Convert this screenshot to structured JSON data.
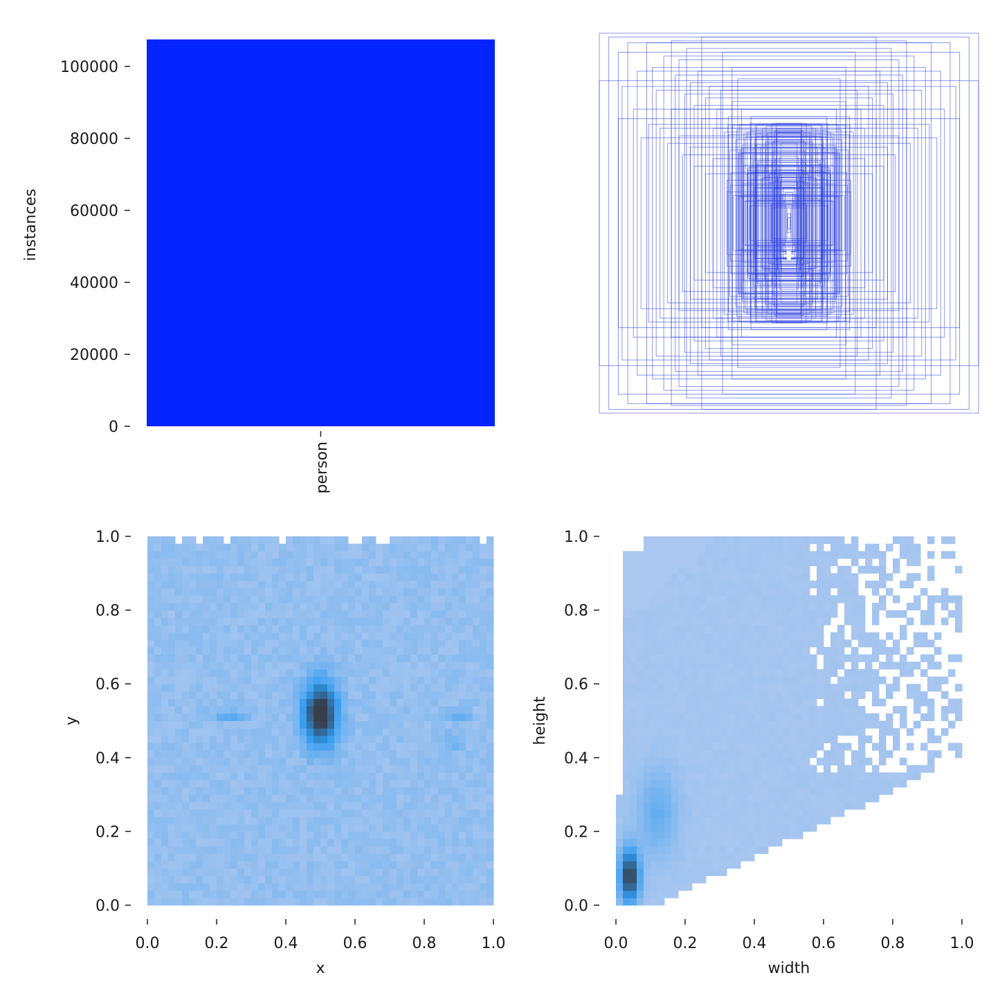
{
  "colors": {
    "bar": "#0524ff",
    "box": "#2c3fe0",
    "heat_low": "#aec8ef",
    "heat_mid": "#2f9bf0",
    "heat_high": "#373f4d",
    "axis": "#1a1a1a"
  },
  "chart_data": [
    {
      "type": "bar",
      "categories": [
        "person"
      ],
      "values": [
        107500
      ],
      "xlabel": "",
      "ylabel": "instances",
      "ylim": [
        0,
        107500
      ],
      "yticks": [
        0,
        20000,
        40000,
        60000,
        80000,
        100000
      ],
      "ytick_labels": [
        "0",
        "20000",
        "40000",
        "60000",
        "80000",
        "100000"
      ],
      "grid": false
    },
    {
      "type": "box-overlay",
      "description_values": "bounding boxes centered at 0.5,0.5 drawn with size width x height",
      "boxes": [
        [
          1.0,
          1.0
        ],
        [
          1.0,
          0.75
        ],
        [
          0.95,
          0.98
        ],
        [
          0.9,
          0.9
        ],
        [
          0.88,
          0.72
        ],
        [
          0.85,
          0.95
        ],
        [
          0.8,
          0.8
        ],
        [
          0.75,
          0.95
        ],
        [
          0.72,
          0.82
        ],
        [
          0.7,
          0.7
        ],
        [
          0.66,
          0.88
        ],
        [
          0.62,
          0.6
        ],
        [
          0.6,
          0.78
        ],
        [
          0.58,
          0.86
        ],
        [
          0.55,
          0.68
        ],
        [
          0.52,
          0.74
        ],
        [
          0.5,
          0.62
        ],
        [
          0.48,
          0.8
        ],
        [
          0.46,
          0.55
        ],
        [
          0.44,
          0.66
        ],
        [
          0.42,
          0.72
        ],
        [
          0.4,
          0.5
        ],
        [
          0.38,
          0.6
        ],
        [
          0.36,
          0.7
        ],
        [
          0.34,
          0.48
        ],
        [
          0.32,
          0.56
        ],
        [
          0.3,
          0.64
        ],
        [
          0.28,
          0.44
        ],
        [
          0.26,
          0.52
        ],
        [
          0.25,
          0.6
        ],
        [
          0.24,
          0.4
        ],
        [
          0.22,
          0.48
        ],
        [
          0.2,
          0.56
        ],
        [
          0.19,
          0.36
        ],
        [
          0.18,
          0.44
        ],
        [
          0.17,
          0.52
        ],
        [
          0.16,
          0.32
        ],
        [
          0.15,
          0.4
        ],
        [
          0.14,
          0.46
        ],
        [
          0.13,
          0.3
        ],
        [
          0.12,
          0.36
        ],
        [
          0.11,
          0.42
        ],
        [
          0.1,
          0.26
        ],
        [
          0.09,
          0.32
        ],
        [
          0.085,
          0.38
        ],
        [
          0.08,
          0.22
        ],
        [
          0.075,
          0.28
        ],
        [
          0.07,
          0.34
        ],
        [
          0.065,
          0.2
        ],
        [
          0.06,
          0.25
        ],
        [
          0.055,
          0.3
        ],
        [
          0.05,
          0.18
        ],
        [
          0.045,
          0.22
        ],
        [
          0.04,
          0.26
        ],
        [
          0.035,
          0.15
        ],
        [
          0.03,
          0.19
        ],
        [
          0.025,
          0.12
        ],
        [
          0.02,
          0.16
        ],
        [
          0.015,
          0.1
        ],
        [
          0.01,
          0.08
        ],
        [
          0.008,
          0.05
        ],
        [
          0.006,
          0.03
        ],
        [
          0.68,
          0.5
        ],
        [
          0.64,
          0.42
        ],
        [
          0.56,
          0.36
        ],
        [
          0.5,
          0.3
        ],
        [
          0.44,
          0.26
        ],
        [
          0.9,
          0.55
        ],
        [
          0.78,
          0.45
        ],
        [
          0.35,
          0.9
        ],
        [
          0.3,
          0.82
        ],
        [
          0.27,
          0.76
        ],
        [
          0.62,
          0.96
        ],
        [
          0.54,
          0.92
        ],
        [
          0.46,
          0.98
        ],
        [
          0.82,
          0.6
        ],
        [
          0.74,
          0.52
        ],
        [
          0.58,
          0.46
        ],
        [
          0.52,
          0.4
        ],
        [
          0.4,
          0.34
        ]
      ]
    },
    {
      "type": "heatmap",
      "xlabel": "x",
      "ylabel": "y",
      "xlim": [
        0,
        1
      ],
      "ylim": [
        0,
        1
      ],
      "xticks": [
        "0.0",
        "0.2",
        "0.4",
        "0.6",
        "0.8",
        "1.0"
      ],
      "yticks": [
        "0.0",
        "0.2",
        "0.4",
        "0.6",
        "0.8",
        "1.0"
      ],
      "hotspots": [
        {
          "x": 0.5,
          "y": 0.52,
          "sx": 0.035,
          "sy": 0.06,
          "w": 1.0
        },
        {
          "x": 0.24,
          "y": 0.515,
          "sx": 0.03,
          "sy": 0.008,
          "w": 0.35
        },
        {
          "x": 0.9,
          "y": 0.515,
          "sx": 0.02,
          "sy": 0.01,
          "w": 0.3
        },
        {
          "x": 0.88,
          "y": 0.44,
          "sx": 0.02,
          "sy": 0.02,
          "w": 0.15
        }
      ]
    },
    {
      "type": "heatmap",
      "xlabel": "width",
      "ylabel": "height",
      "xlim": [
        0,
        1
      ],
      "ylim": [
        0,
        1
      ],
      "xticks": [
        "0.0",
        "0.2",
        "0.4",
        "0.6",
        "0.8",
        "1.0"
      ],
      "yticks": [
        "0.0",
        "0.2",
        "0.4",
        "0.6",
        "0.8",
        "1.0"
      ],
      "hotspots": [
        {
          "x": 0.04,
          "y": 0.08,
          "sx": 0.02,
          "sy": 0.05,
          "w": 1.0
        },
        {
          "x": 0.12,
          "y": 0.25,
          "sx": 0.04,
          "sy": 0.08,
          "w": 0.25
        }
      ]
    }
  ]
}
